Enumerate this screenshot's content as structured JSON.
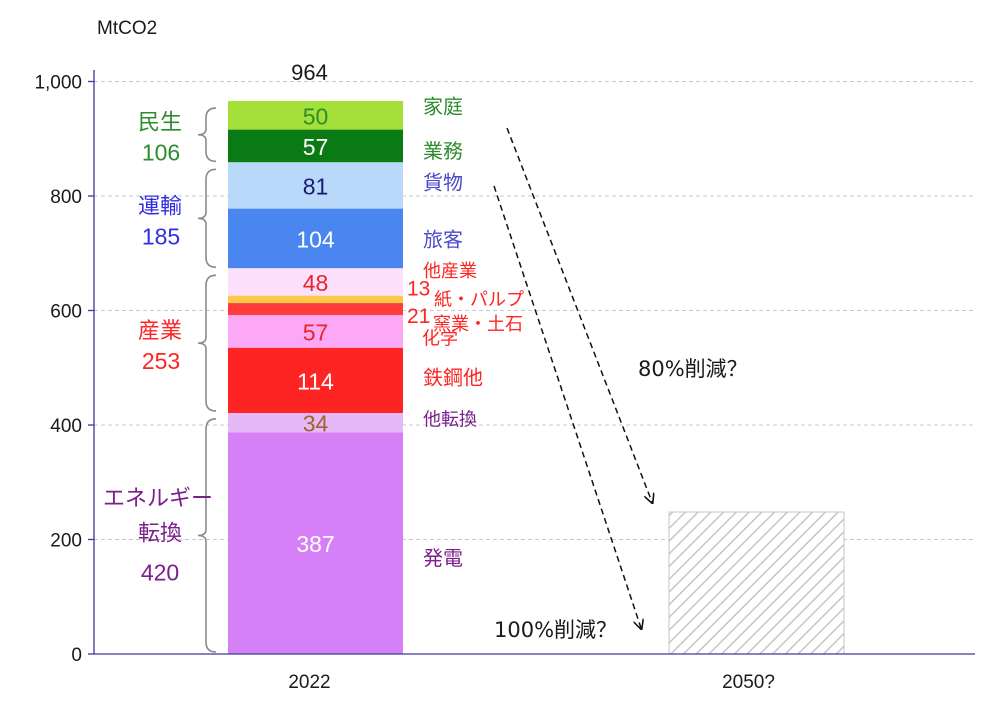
{
  "chart_data": {
    "type": "bar",
    "y_unit": "MtCO2",
    "ylim": [
      0,
      1000
    ],
    "y_ticks": [
      {
        "value": 0,
        "label": "0"
      },
      {
        "value": 200,
        "label": "200"
      },
      {
        "value": 400,
        "label": "400"
      },
      {
        "value": 600,
        "label": "600"
      },
      {
        "value": 800,
        "label": "800"
      },
      {
        "value": 1000,
        "label": "1,000"
      }
    ],
    "grid": true,
    "categories": [
      "2022",
      "2050?"
    ],
    "total_label": "964",
    "segments": [
      {
        "name": "発電",
        "value": 387,
        "label": "387",
        "color": "#d580f7",
        "value_color": "#ffffff",
        "name_color": "#7a1f8c"
      },
      {
        "name": "他転換",
        "value": 34,
        "label": "34",
        "color": "#e5b8f8",
        "value_color": "#a0652a",
        "name_color": "#7a1f8c"
      },
      {
        "name": "鉄鋼他",
        "value": 114,
        "label": "114",
        "color": "#ff2424",
        "value_color": "#ffffff",
        "name_color": "#ff2424"
      },
      {
        "name": "化学",
        "value": 57,
        "label": "57",
        "color": "#fca8f6",
        "value_color": "#e8262a",
        "name_color": "#ff2424"
      },
      {
        "name": "窯業・土石",
        "value": 21,
        "label": "21",
        "color": "#ff3c3c",
        "value_color": "#ff2424",
        "name_color": "#ff2424"
      },
      {
        "name": "紙・パルプ",
        "value": 13,
        "label": "13",
        "color": "#ffc94a",
        "value_color": "#ff2424",
        "name_color": "#ff2424"
      },
      {
        "name": "他産業",
        "value": 48,
        "label": "48",
        "color": "#fde0fb",
        "value_color": "#e8262a",
        "name_color": "#ff2424"
      },
      {
        "name": "旅客",
        "value": 104,
        "label": "104",
        "color": "#4a86f0",
        "value_color": "#ffffff",
        "name_color": "#4a4ac8"
      },
      {
        "name": "貨物",
        "value": 81,
        "label": "81",
        "color": "#b8d9fa",
        "value_color": "#1a1a6e",
        "name_color": "#4a4ac8"
      },
      {
        "name": "業務",
        "value": 57,
        "label": "57",
        "color": "#0a7a14",
        "value_color": "#ffffff",
        "name_color": "#2e8b2e"
      },
      {
        "name": "家庭",
        "value": 50,
        "label": "50",
        "color": "#a5e03a",
        "value_color": "#2e8b2e",
        "name_color": "#2e8b2e"
      }
    ],
    "groups": [
      {
        "name": "民生",
        "total": "106",
        "color": "#2e8b2e",
        "from": 857,
        "to": 964
      },
      {
        "name": "運輸",
        "total": "185",
        "color": "#2f2fe0",
        "from": 672,
        "to": 857
      },
      {
        "name": "産業",
        "total": "253",
        "color": "#ff2424",
        "from": 421,
        "to": 672
      },
      {
        "name": "エネルギー",
        "name2": "転換",
        "total": "420",
        "color": "#7a1f8c",
        "from": 0,
        "to": 421
      }
    ],
    "future_bar": {
      "category": "2050?",
      "value": 248
    },
    "annotations": [
      {
        "text": "80%削減？"
      },
      {
        "text": "100%削減？"
      }
    ],
    "colors": {
      "axis": "#3a3a9a",
      "grid": "#c8c8c8",
      "text": "#1a1a1a"
    }
  }
}
